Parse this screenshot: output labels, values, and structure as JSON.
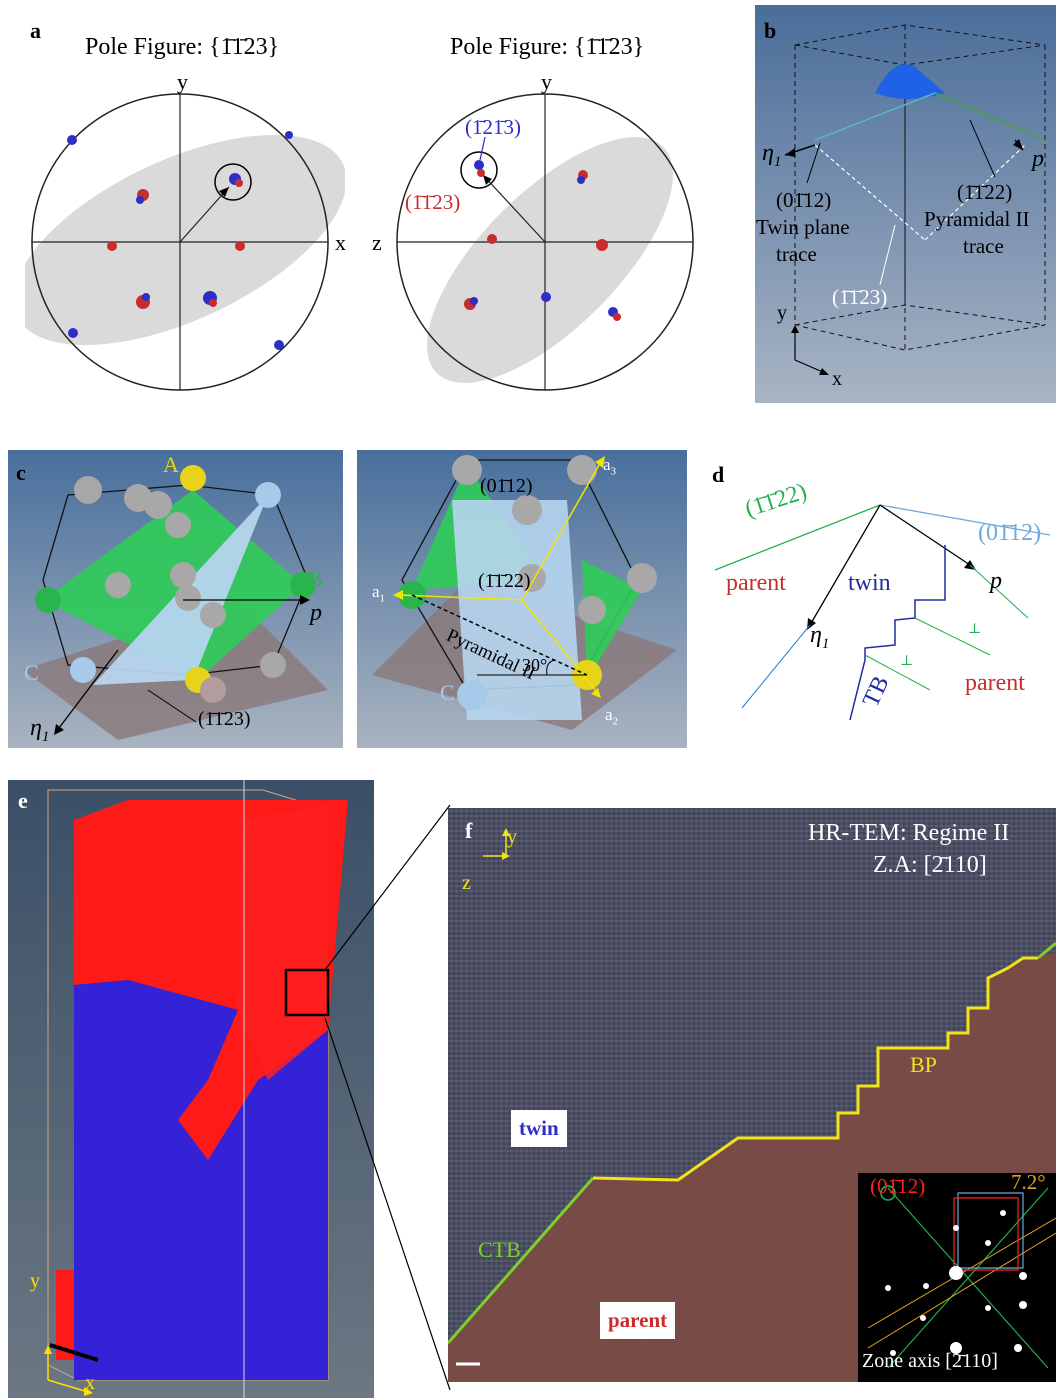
{
  "labels": {
    "a": "a",
    "b": "b",
    "c": "c",
    "d": "d",
    "e": "e",
    "f": "f"
  },
  "panel_a": {
    "title_left": "Pole Figure: {1̄1̄23}",
    "title_right": "Pole Figure: {1̄1̄23}",
    "left_axes": {
      "y": "y",
      "x": "x"
    },
    "right_axes": {
      "y": "y",
      "z": "z"
    },
    "right_annot_blue": "(1̄21̄3)",
    "right_annot_red": "(1̄1̄23)"
  },
  "panel_b": {
    "eta": "η",
    "eta_sub": "1",
    "p": "p",
    "plane1": "(01̄12)",
    "twin_plane_1": "Twin plane",
    "twin_plane_2": "trace",
    "plane2": "(1̄1̄22)",
    "pyr_1": "Pyramidal II",
    "pyr_2": "trace",
    "plane3": "(1̄1̄23)",
    "axis_y": "y",
    "axis_x": "x"
  },
  "panel_c": {
    "A": "A",
    "B": "B",
    "C_left": "C",
    "p": "p",
    "eta": "η",
    "eta_sub": "1",
    "plane_bottom": "(1̄1̄23)",
    "plane_top": "(01̄12)",
    "plane_mid": "(1̄1̄22)",
    "pyramidal": "Pyramidal II",
    "a1": "a",
    "a1_sub": "1",
    "a2": "a",
    "a2_sub": "2",
    "a3": "a",
    "a3_sub": "3",
    "C_right": "C",
    "angle": "30°"
  },
  "panel_d": {
    "plane_green": "(1̄1̄22)",
    "plane_blue": "(01̄12)",
    "parent_top": "parent",
    "twin": "twin",
    "p": "p",
    "eta": "η",
    "eta_sub": "1",
    "tb": "TB",
    "parent_bottom": "parent"
  },
  "panel_e": {
    "y": "y",
    "x": "x"
  },
  "panel_f": {
    "title": "HR-TEM: Regime II",
    "zone": "Z.A: [2̄110]",
    "axis_y": "y",
    "axis_z": "z",
    "twin": "twin",
    "parent": "parent",
    "ctb": "CTB",
    "bp": "BP",
    "inset_plane": "(01̄12)",
    "inset_angle": "7.2°",
    "inset_zone": "Zone axis [2̄110]"
  },
  "colors": {
    "parent_red": "#ff1a1a",
    "twin_blue": "#3322d6",
    "green": "#22b14c",
    "light_blue": "#6fa8dc",
    "yellow": "#e8e000"
  }
}
